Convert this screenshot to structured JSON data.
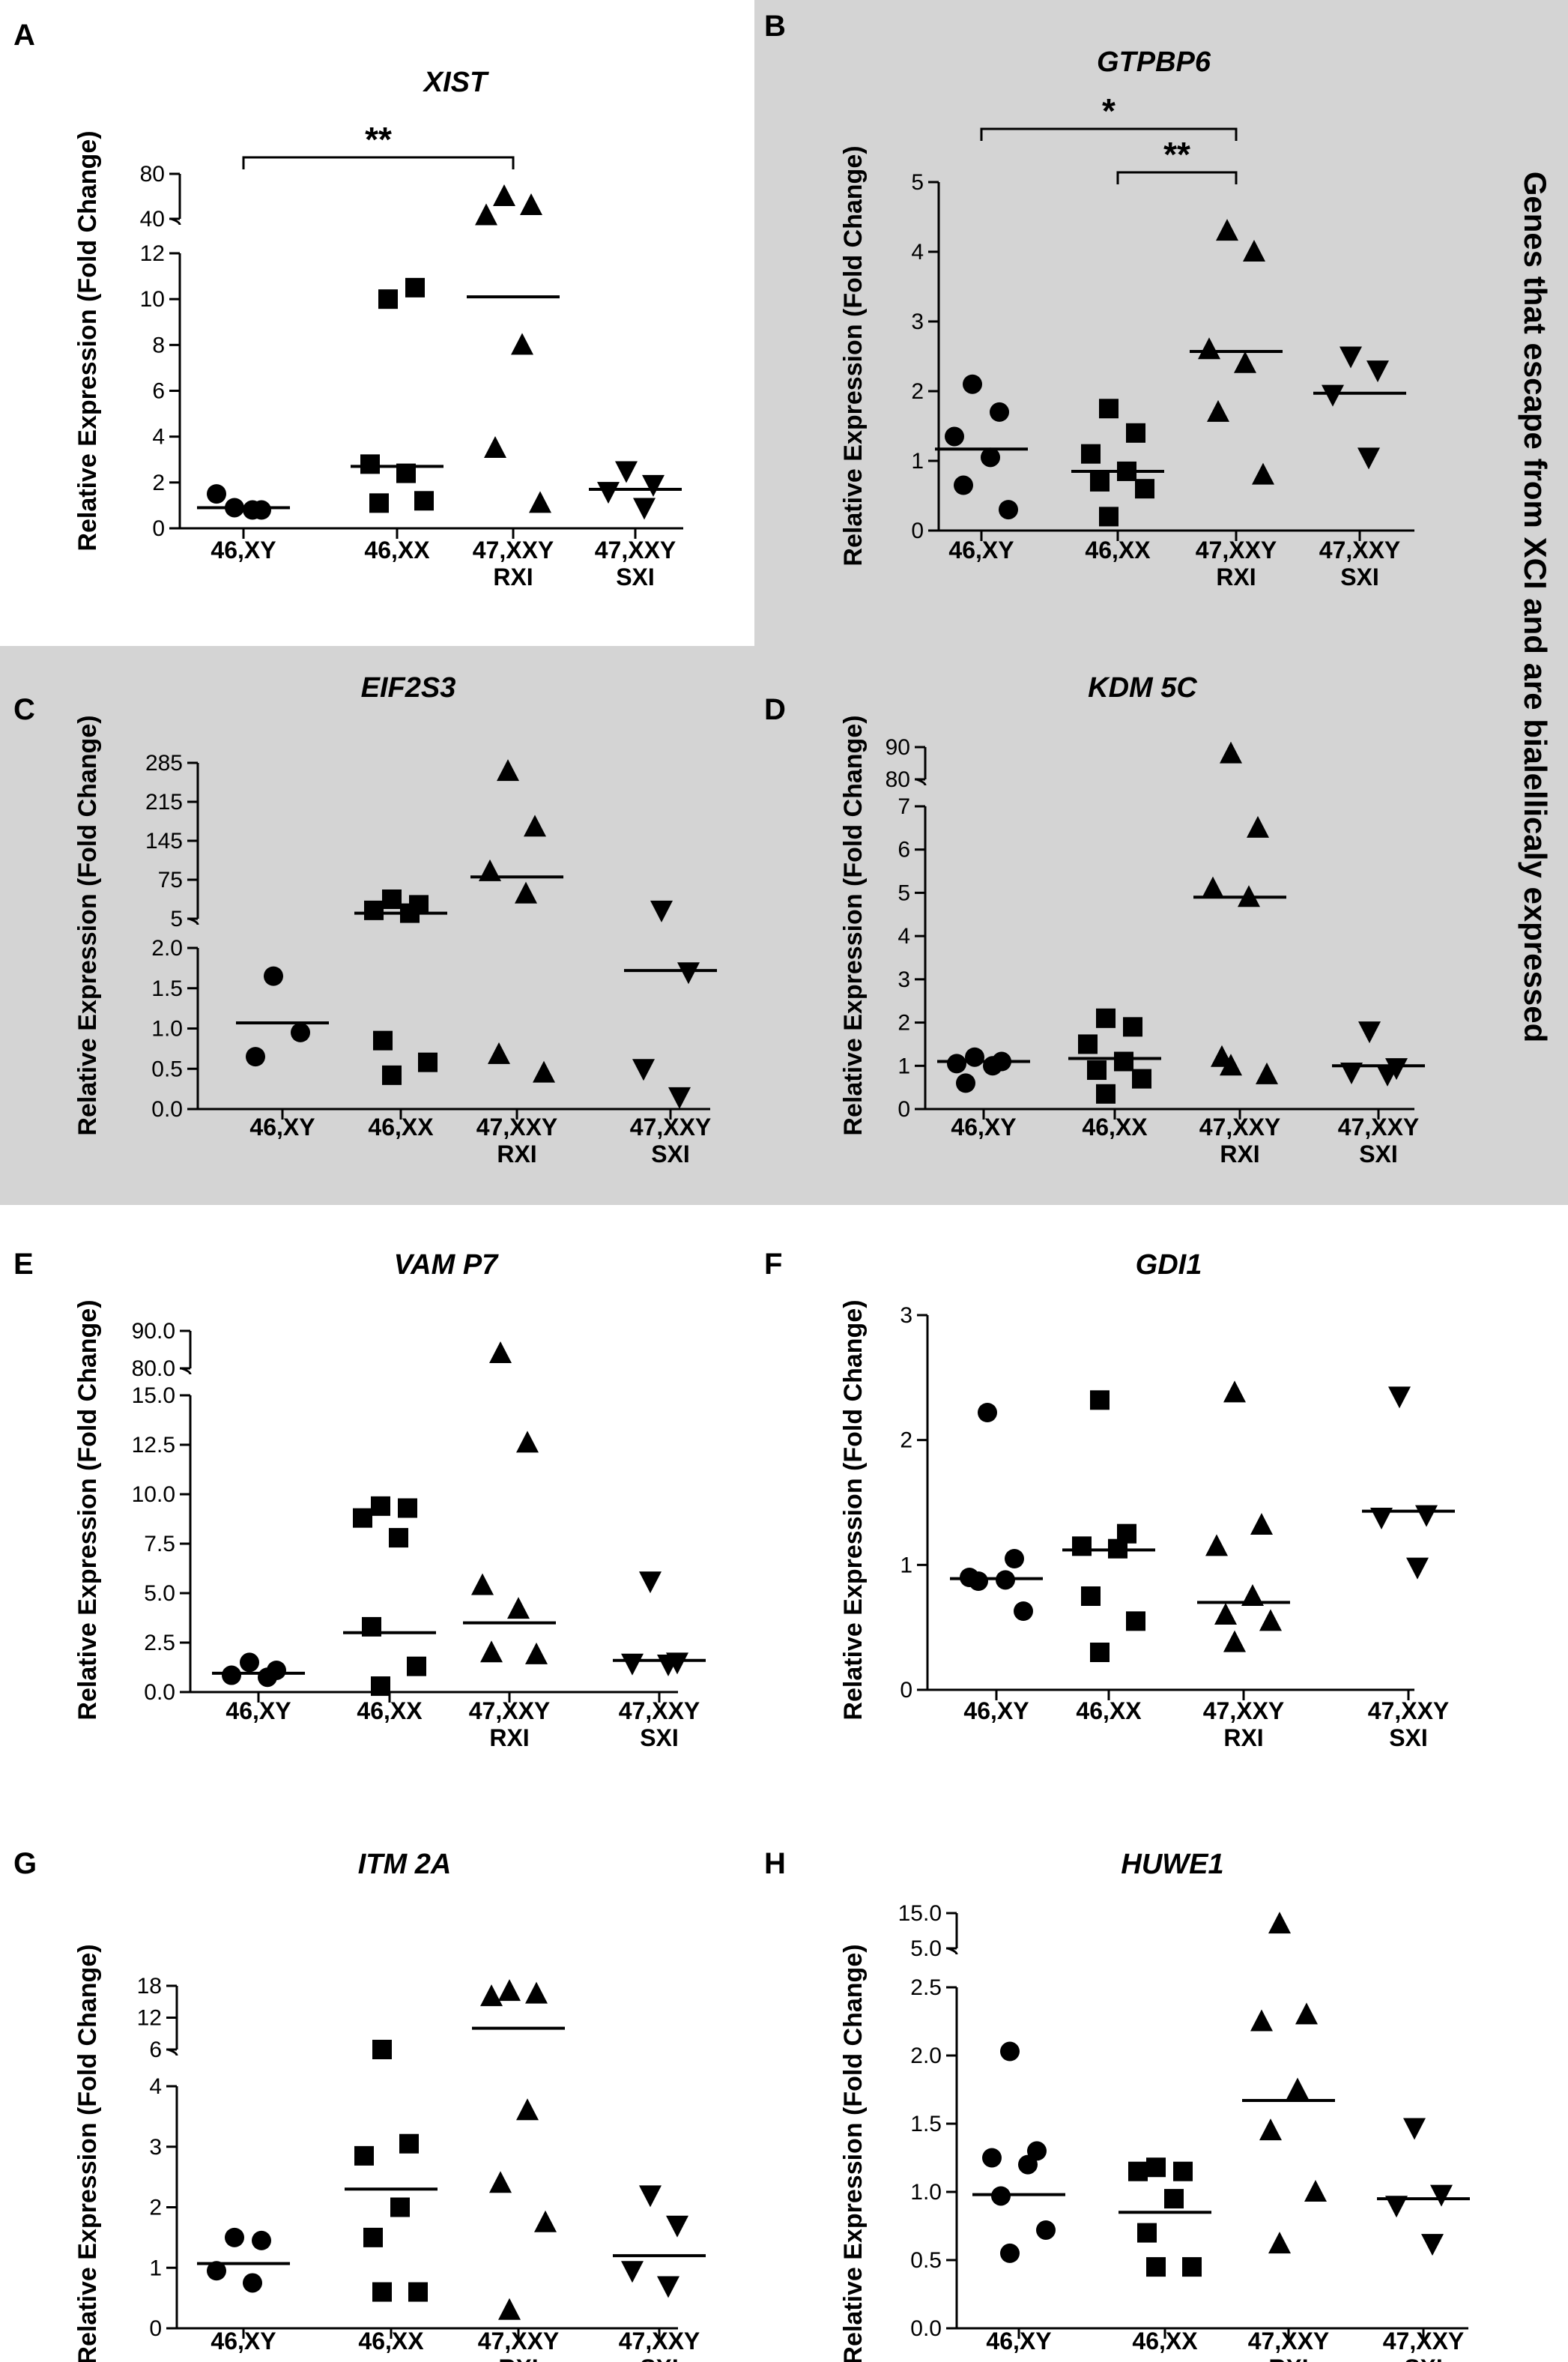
{
  "side_note": "Genes that escape from XCI and are bialellicaly expressed",
  "colors": {
    "highlight_bg": "#d4d4d4",
    "ink": "#000000"
  },
  "chart_data": [
    {
      "panel": "A",
      "type": "scatter",
      "title": "XIST",
      "ylabel": "Relative Expression (Fold Change)",
      "categories": [
        [
          "46,XY"
        ],
        [
          "46,XX"
        ],
        [
          "47,XXY",
          "RXI"
        ],
        [
          "47,XXY",
          "SXI"
        ]
      ],
      "markers": [
        "circle",
        "square",
        "triangle-up",
        "triangle-down"
      ],
      "lower": {
        "range": [
          0,
          12
        ],
        "ticks": [
          "0",
          "2",
          "4",
          "6",
          "8",
          "10",
          "12"
        ],
        "tick_values": [
          0,
          2,
          4,
          6,
          8,
          10,
          12
        ]
      },
      "upper": {
        "range": [
          40,
          80
        ],
        "ticks": [
          "40",
          "80"
        ],
        "tick_values": [
          40,
          80
        ]
      },
      "groups": [
        {
          "points": [
            0.9,
            0.8,
            1.5,
            0.8
          ],
          "median": 0.9
        },
        {
          "points": [
            10.0,
            10.5,
            2.8,
            2.4,
            1.1,
            1.2
          ],
          "median": 2.7
        },
        {
          "points": [
            60,
            52,
            43,
            8.0,
            3.5,
            1.1
          ],
          "median": 10.1
        },
        {
          "points": [
            2.5,
            1.9,
            1.6,
            0.9
          ],
          "median": 1.7
        }
      ],
      "significance": [
        {
          "from": 0,
          "to": 2,
          "label": "**"
        }
      ],
      "highlighted": false
    },
    {
      "panel": "B",
      "type": "scatter",
      "title": "GTPBP6",
      "ylabel": "Relative Expression (Fold Change)",
      "categories": [
        [
          "46,XY"
        ],
        [
          "46,XX"
        ],
        [
          "47,XXY",
          "RXI"
        ],
        [
          "47,XXY",
          "SXI"
        ]
      ],
      "markers": [
        "circle",
        "square",
        "triangle-up",
        "triangle-down"
      ],
      "lower": {
        "range": [
          0,
          5
        ],
        "ticks": [
          "0",
          "1",
          "2",
          "3",
          "4",
          "5"
        ],
        "tick_values": [
          0,
          1,
          2,
          3,
          4,
          5
        ]
      },
      "upper": null,
      "groups": [
        {
          "points": [
            2.1,
            1.7,
            1.35,
            1.05,
            0.65,
            0.3
          ],
          "median": 1.17
        },
        {
          "points": [
            1.75,
            1.4,
            1.1,
            0.85,
            0.7,
            0.6,
            0.2
          ],
          "median": 0.85
        },
        {
          "points": [
            4.3,
            4.0,
            2.6,
            2.4,
            1.7,
            0.8
          ],
          "median": 2.57
        },
        {
          "points": [
            2.5,
            2.3,
            1.95,
            1.05
          ],
          "median": 1.97
        }
      ],
      "significance": [
        {
          "from": 0,
          "to": 2,
          "label": "*"
        },
        {
          "from": 1,
          "to": 2,
          "label": "**"
        }
      ],
      "highlighted": true
    },
    {
      "panel": "C",
      "type": "scatter",
      "title": "EIF2S3",
      "ylabel": "Relative Expression (Fold Change)",
      "categories": [
        [
          "46,XY"
        ],
        [
          "46,XX"
        ],
        [
          "47,XXY",
          "RXI"
        ],
        [
          "47,XXY",
          "SXI"
        ]
      ],
      "markers": [
        "circle",
        "square",
        "triangle-up",
        "triangle-down"
      ],
      "lower": {
        "range": [
          0,
          2.0
        ],
        "ticks": [
          "0.0",
          "0.5",
          "1.0",
          "1.5",
          "2.0"
        ],
        "tick_values": [
          0,
          0.5,
          1.0,
          1.5,
          2.0
        ]
      },
      "upper": {
        "range": [
          5,
          285
        ],
        "ticks": [
          "5",
          "75",
          "145",
          "215",
          "285"
        ],
        "tick_values": [
          5,
          75,
          145,
          215,
          285
        ]
      },
      "groups": [
        {
          "points": [
            1.65,
            0.95,
            0.65
          ],
          "median": 1.07
        },
        {
          "points": [
            40,
            30,
            20,
            15,
            0.85,
            0.58,
            0.42
          ],
          "median": 15
        },
        {
          "points": [
            270,
            170,
            90,
            50,
            0.68,
            0.45
          ],
          "median": 80
        },
        {
          "points": [
            20,
            1.7,
            0.5,
            0.15
          ],
          "median": 1.72
        }
      ],
      "significance": [],
      "highlighted": true
    },
    {
      "panel": "D",
      "type": "scatter",
      "title": "KDM 5C",
      "ylabel": "Relative Expression (Fold Change)",
      "categories": [
        [
          "46,XY"
        ],
        [
          "46,XX"
        ],
        [
          "47,XXY",
          "RXI"
        ],
        [
          "47,XXY",
          "SXI"
        ]
      ],
      "markers": [
        "circle",
        "square",
        "triangle-up",
        "triangle-down"
      ],
      "lower": {
        "range": [
          0,
          7
        ],
        "ticks": [
          "0",
          "1",
          "2",
          "3",
          "4",
          "5",
          "6",
          "7"
        ],
        "tick_values": [
          0,
          1,
          2,
          3,
          4,
          5,
          6,
          7
        ]
      },
      "upper": {
        "range": [
          80,
          90
        ],
        "ticks": [
          "80",
          "90"
        ],
        "tick_values": [
          80,
          90
        ]
      },
      "groups": [
        {
          "points": [
            1.2,
            1.1,
            1.05,
            1.0,
            0.6
          ],
          "median": 1.1
        },
        {
          "points": [
            2.1,
            1.9,
            1.5,
            1.1,
            0.9,
            0.7,
            0.35
          ],
          "median": 1.17
        },
        {
          "points": [
            88,
            6.5,
            5.1,
            4.9,
            1.2,
            0.8,
            1.0
          ],
          "median": 4.9
        },
        {
          "points": [
            1.8,
            0.95,
            0.85,
            0.8
          ],
          "median": 1.0
        }
      ],
      "significance": [],
      "highlighted": true
    },
    {
      "panel": "E",
      "type": "scatter",
      "title": "VAM P7",
      "ylabel": "Relative Expression (Fold Change)",
      "categories": [
        [
          "46,XY"
        ],
        [
          "46,XX"
        ],
        [
          "47,XXY",
          "RXI"
        ],
        [
          "47,XXY",
          "SXI"
        ]
      ],
      "markers": [
        "circle",
        "square",
        "triangle-up",
        "triangle-down"
      ],
      "lower": {
        "range": [
          0,
          15.0
        ],
        "ticks": [
          "0.0",
          "2.5",
          "5.0",
          "7.5",
          "10.0",
          "12.5",
          "15.0"
        ],
        "tick_values": [
          0,
          2.5,
          5.0,
          7.5,
          10.0,
          12.5,
          15.0
        ]
      },
      "upper": {
        "range": [
          80.0,
          90.0
        ],
        "ticks": [
          "80.0",
          "90.0"
        ],
        "tick_values": [
          80,
          90
        ]
      },
      "groups": [
        {
          "points": [
            1.5,
            1.1,
            0.85,
            0.75
          ],
          "median": 0.95
        },
        {
          "points": [
            9.4,
            9.3,
            8.8,
            7.8,
            3.3,
            1.3,
            0.3
          ],
          "median": 3.0
        },
        {
          "points": [
            84,
            12.6,
            5.4,
            4.2,
            2.0,
            1.9
          ],
          "median": 3.5
        },
        {
          "points": [
            5.6,
            1.5,
            1.45,
            1.4
          ],
          "median": 1.6
        }
      ],
      "significance": [],
      "highlighted": false
    },
    {
      "panel": "F",
      "type": "scatter",
      "title": "GDI1",
      "ylabel": "Relative Expression (Fold Change)",
      "categories": [
        [
          "46,XY"
        ],
        [
          "46,XX"
        ],
        [
          "47,XXY",
          "RXI"
        ],
        [
          "47,XXY",
          "SXI"
        ]
      ],
      "markers": [
        "circle",
        "square",
        "triangle-up",
        "triangle-down"
      ],
      "lower": {
        "range": [
          0,
          3
        ],
        "ticks": [
          "0",
          "1",
          "2",
          "3"
        ],
        "tick_values": [
          0,
          1,
          2,
          3
        ]
      },
      "upper": null,
      "groups": [
        {
          "points": [
            2.22,
            1.05,
            0.9,
            0.88,
            0.87,
            0.63
          ],
          "median": 0.89
        },
        {
          "points": [
            2.32,
            1.25,
            1.15,
            1.13,
            0.75,
            0.55,
            0.3
          ],
          "median": 1.12
        },
        {
          "points": [
            2.38,
            1.32,
            1.15,
            0.75,
            0.6,
            0.55,
            0.38
          ],
          "median": 0.7
        },
        {
          "points": [
            2.35,
            1.4,
            1.38,
            0.98
          ],
          "median": 1.43
        }
      ],
      "significance": [],
      "highlighted": false
    },
    {
      "panel": "G",
      "type": "scatter",
      "title": "ITM 2A",
      "ylabel": "Relative Expression (Fold Change)",
      "categories": [
        [
          "46,XY"
        ],
        [
          "46,XX"
        ],
        [
          "47,XXY",
          "RXI"
        ],
        [
          "47,XXY",
          "SXI"
        ]
      ],
      "markers": [
        "circle",
        "square",
        "triangle-up",
        "triangle-down"
      ],
      "lower": {
        "range": [
          0,
          4
        ],
        "ticks": [
          "0",
          "1",
          "2",
          "3",
          "4"
        ],
        "tick_values": [
          0,
          1,
          2,
          3,
          4
        ]
      },
      "upper": {
        "range": [
          6,
          18
        ],
        "ticks": [
          "6",
          "12",
          "18"
        ],
        "tick_values": [
          6,
          12,
          18
        ]
      },
      "groups": [
        {
          "points": [
            1.5,
            1.45,
            0.95,
            0.75
          ],
          "median": 1.07
        },
        {
          "points": [
            6.0,
            3.05,
            2.85,
            2.0,
            1.5,
            0.6,
            0.6
          ],
          "median": 2.3
        },
        {
          "points": [
            17,
            16.5,
            16.0,
            3.6,
            2.4,
            1.75,
            0.3
          ],
          "median": 10
        },
        {
          "points": [
            2.2,
            1.7,
            0.95,
            0.7
          ],
          "median": 1.2
        }
      ],
      "significance": [],
      "highlighted": false
    },
    {
      "panel": "H",
      "type": "scatter",
      "title": "HUWE1",
      "ylabel": "Relative Expression (Fold Change)",
      "categories": [
        [
          "46,XY"
        ],
        [
          "46,XX"
        ],
        [
          "47,XXY",
          "RXI"
        ],
        [
          "47,XXY",
          "SXI"
        ]
      ],
      "markers": [
        "circle",
        "square",
        "triangle-up",
        "triangle-down"
      ],
      "lower": {
        "range": [
          0,
          2.5
        ],
        "ticks": [
          "0.0",
          "0.5",
          "1.0",
          "1.5",
          "2.0",
          "2.5"
        ],
        "tick_values": [
          0,
          0.5,
          1.0,
          1.5,
          2.0,
          2.5
        ]
      },
      "upper": {
        "range": [
          5.0,
          15.0
        ],
        "ticks": [
          "5.0",
          "15.0"
        ],
        "tick_values": [
          5,
          15
        ]
      },
      "groups": [
        {
          "points": [
            2.03,
            1.3,
            1.25,
            1.2,
            0.97,
            0.72,
            0.55
          ],
          "median": 0.98
        },
        {
          "points": [
            1.18,
            1.15,
            1.15,
            0.95,
            0.7,
            0.45,
            0.45
          ],
          "median": 0.85
        },
        {
          "points": [
            12,
            2.3,
            2.25,
            1.75,
            1.45,
            1.0,
            0.62
          ],
          "median": 1.67
        },
        {
          "points": [
            1.47,
            0.98,
            0.9,
            0.62
          ],
          "median": 0.95
        }
      ],
      "significance": [],
      "highlighted": false
    }
  ]
}
